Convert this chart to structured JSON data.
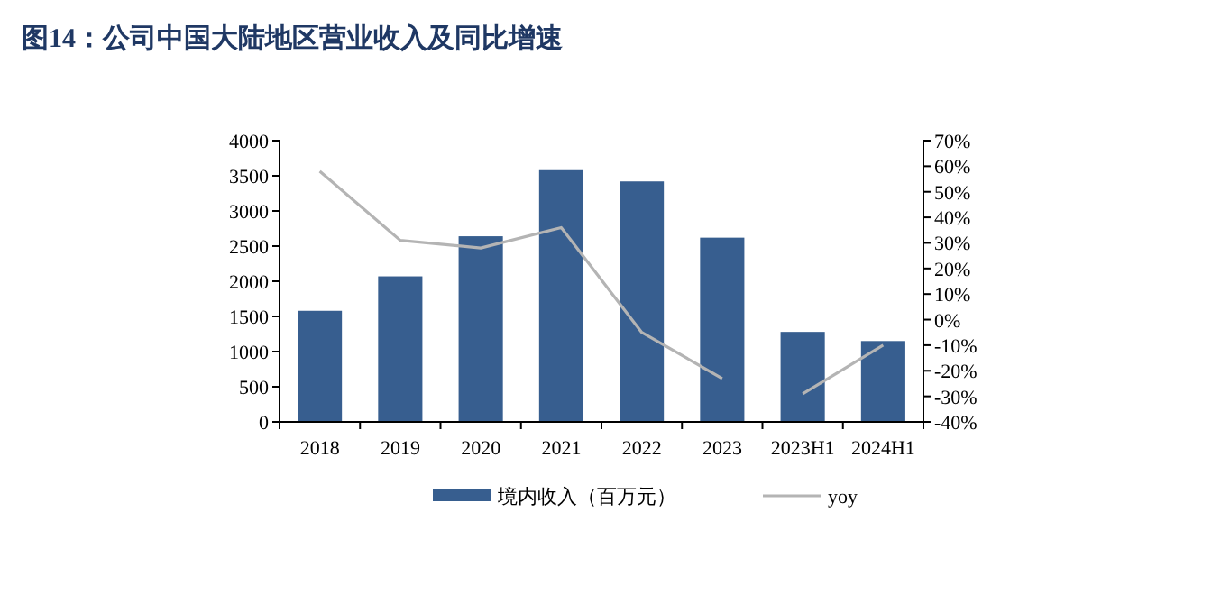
{
  "chart_data": {
    "type": "bar",
    "title": "图14：公司中国大陆地区营业收入及同比增速",
    "categories": [
      "2018",
      "2019",
      "2020",
      "2021",
      "2022",
      "2023",
      "2023H1",
      "2024H1"
    ],
    "series": [
      {
        "name": "境内收入（百万元）",
        "color": "#375e8f",
        "values": [
          1580,
          2070,
          2640,
          3580,
          3420,
          2620,
          1280,
          1150
        ]
      },
      {
        "name": "yoy",
        "type": "line",
        "axis": "y2",
        "color": "#b4b4b4",
        "values": [
          58,
          31,
          28,
          36,
          -5,
          -23,
          null,
          null
        ]
      },
      {
        "type": "line",
        "axis": "y2",
        "color": "#b4b4b4",
        "values": [
          null,
          null,
          null,
          null,
          null,
          null,
          -29,
          -10
        ]
      }
    ],
    "ylim": [
      0,
      4000
    ],
    "yticks": [
      0,
      500,
      1000,
      1500,
      2000,
      2500,
      3000,
      3500,
      4000
    ],
    "y2lim": [
      -40,
      70
    ],
    "y2ticks": [
      {
        "value": -40,
        "label": "-40%"
      },
      {
        "value": -30,
        "label": "-30%"
      },
      {
        "value": -20,
        "label": "-20%"
      },
      {
        "value": -10,
        "label": "-10%"
      },
      {
        "value": 0,
        "label": "0%"
      },
      {
        "value": 10,
        "label": "10%"
      },
      {
        "value": 20,
        "label": "20%"
      },
      {
        "value": 30,
        "label": "30%"
      },
      {
        "value": 40,
        "label": "40%"
      },
      {
        "value": 50,
        "label": "50%"
      },
      {
        "value": 60,
        "label": "60%"
      },
      {
        "value": 70,
        "label": "70%"
      }
    ],
    "legend": "bottom",
    "grid": false
  }
}
